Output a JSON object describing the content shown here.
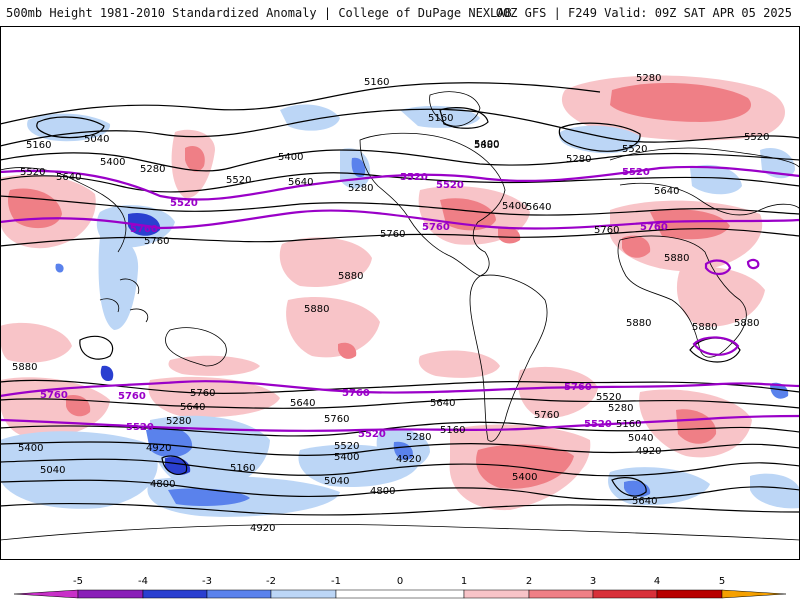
{
  "header": {
    "left": "500mb Height 1981-2010 Standardized Anomaly | College of DuPage NEXLAB",
    "right": "00Z GFS | F249 Valid: 09Z SAT APR 05 2025"
  },
  "colors": {
    "neg5": "#c830c8",
    "neg4": "#8a1fb8",
    "neg3": "#2a3fd0",
    "neg2": "#5a82ec",
    "neg1": "#bcd6f6",
    "zero": "#ffffff",
    "pos1": "#f8c4c8",
    "pos2": "#ef7f86",
    "pos3": "#d8303a",
    "pos4": "#b80000",
    "pos5": "#f5a000",
    "highlight_contour": "#9a00c8",
    "contour": "#000000"
  },
  "contour_labels": [
    {
      "id": "c1",
      "text": "5160"
    },
    {
      "id": "c2",
      "text": "5040"
    },
    {
      "id": "c3",
      "text": "5160"
    },
    {
      "id": "c4",
      "text": "5400"
    },
    {
      "id": "c5",
      "text": "5280"
    },
    {
      "id": "c6",
      "text": "5520"
    },
    {
      "id": "c7",
      "text": "5640"
    },
    {
      "id": "c8",
      "text": "5400"
    },
    {
      "id": "c9",
      "text": "5520"
    },
    {
      "id": "c10",
      "text": "5640"
    },
    {
      "id": "c11",
      "text": "5160"
    },
    {
      "id": "c12",
      "text": "5400"
    },
    {
      "id": "c13",
      "text": "5280"
    },
    {
      "id": "c14",
      "text": "5520"
    },
    {
      "id": "c15",
      "text": "5280"
    },
    {
      "id": "c16",
      "text": "5520"
    },
    {
      "id": "c17",
      "text": "5280"
    },
    {
      "id": "c18",
      "text": "5640"
    },
    {
      "id": "c19",
      "text": "5640"
    },
    {
      "id": "c20",
      "text": "5760"
    },
    {
      "id": "c21",
      "text": "5880"
    },
    {
      "id": "c22",
      "text": "5880"
    },
    {
      "id": "c23",
      "text": "5760"
    },
    {
      "id": "c24",
      "text": "5760"
    },
    {
      "id": "c25",
      "text": "5880"
    },
    {
      "id": "c26",
      "text": "5880"
    },
    {
      "id": "c27",
      "text": "5880"
    },
    {
      "id": "c28",
      "text": "5880"
    },
    {
      "id": "c29",
      "text": "5760"
    },
    {
      "id": "c30",
      "text": "5640"
    },
    {
      "id": "c31",
      "text": "5280"
    },
    {
      "id": "c32",
      "text": "4920"
    },
    {
      "id": "c33",
      "text": "5400"
    },
    {
      "id": "c34",
      "text": "5040"
    },
    {
      "id": "c35",
      "text": "4800"
    },
    {
      "id": "c36",
      "text": "5160"
    },
    {
      "id": "c37",
      "text": "4920"
    },
    {
      "id": "c38",
      "text": "5640"
    },
    {
      "id": "c39",
      "text": "5760"
    },
    {
      "id": "c40",
      "text": "5520"
    },
    {
      "id": "c41",
      "text": "5400"
    },
    {
      "id": "c42",
      "text": "5040"
    },
    {
      "id": "c43",
      "text": "4800"
    },
    {
      "id": "c44",
      "text": "4920"
    },
    {
      "id": "c45",
      "text": "5280"
    },
    {
      "id": "c46",
      "text": "5160"
    },
    {
      "id": "c47",
      "text": "5400"
    },
    {
      "id": "c48",
      "text": "5760"
    },
    {
      "id": "c49",
      "text": "5640"
    },
    {
      "id": "c50",
      "text": "5520"
    },
    {
      "id": "c51",
      "text": "5280"
    },
    {
      "id": "c52",
      "text": "5160"
    },
    {
      "id": "c53",
      "text": "5040"
    },
    {
      "id": "c54",
      "text": "4920"
    },
    {
      "id": "c55",
      "text": "5640"
    },
    {
      "id": "c56",
      "text": "5400"
    },
    {
      "id": "c57",
      "text": "5880"
    },
    {
      "id": "c58",
      "text": "5880"
    }
  ],
  "highlight_labels": [
    {
      "id": "h1",
      "text": "5520"
    },
    {
      "id": "h2",
      "text": "5520"
    },
    {
      "id": "h3",
      "text": "5520"
    },
    {
      "id": "h4",
      "text": "5520"
    },
    {
      "id": "h5",
      "text": "5760"
    },
    {
      "id": "h6",
      "text": "5760"
    },
    {
      "id": "h7",
      "text": "5760"
    },
    {
      "id": "h8",
      "text": "5760"
    },
    {
      "id": "h9",
      "text": "5760"
    },
    {
      "id": "h10",
      "text": "5760"
    },
    {
      "id": "h11",
      "text": "5760"
    },
    {
      "id": "h12",
      "text": "5520"
    },
    {
      "id": "h13",
      "text": "5520"
    },
    {
      "id": "h14",
      "text": "5520"
    }
  ],
  "colorbar": {
    "ticks": [
      "-5",
      "-4",
      "-3",
      "-2",
      "-1",
      "0",
      "1",
      "2",
      "3",
      "4",
      "5"
    ]
  }
}
